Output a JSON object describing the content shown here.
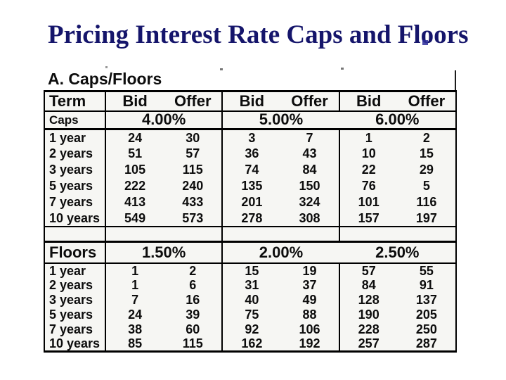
{
  "title": "Pricing Interest Rate Caps and Floors",
  "colors": {
    "title_text": "#15156b",
    "table_text": "#0d0d0d",
    "table_border": "#000000",
    "table_background": "#f6f6f3",
    "page_background": "#ffffff"
  },
  "table": {
    "section_label": "A. Caps/Floors",
    "header": {
      "term": "Term",
      "bid": "Bid",
      "offer": "Offer"
    },
    "caps": {
      "label": "Caps",
      "strikes": [
        "4.00%",
        "5.00%",
        "6.00%"
      ],
      "rows": [
        {
          "term": "1 year",
          "values": [
            "24",
            "30",
            "3",
            "7",
            "1",
            "2"
          ]
        },
        {
          "term": "2 years",
          "values": [
            "51",
            "57",
            "36",
            "43",
            "10",
            "15"
          ]
        },
        {
          "term": "3 years",
          "values": [
            "105",
            "115",
            "74",
            "84",
            "22",
            "29"
          ]
        },
        {
          "term": "5 years",
          "values": [
            "222",
            "240",
            "135",
            "150",
            "76",
            "5"
          ]
        },
        {
          "term": "7 years",
          "values": [
            "413",
            "433",
            "201",
            "324",
            "101",
            "116"
          ]
        },
        {
          "term": "10 years",
          "values": [
            "549",
            "573",
            "278",
            "308",
            "157",
            "197"
          ]
        }
      ]
    },
    "floors": {
      "label": "Floors",
      "strikes": [
        "1.50%",
        "2.00%",
        "2.50%"
      ],
      "rows": [
        {
          "term": "1 year",
          "values": [
            "1",
            "2",
            "15",
            "19",
            "57",
            "55"
          ]
        },
        {
          "term": "2 years",
          "values": [
            "1",
            "6",
            "31",
            "37",
            "84",
            "91"
          ]
        },
        {
          "term": "3 years",
          "values": [
            "7",
            "16",
            "40",
            "49",
            "128",
            "137"
          ]
        },
        {
          "term": "5 years",
          "values": [
            "24",
            "39",
            "75",
            "88",
            "190",
            "205"
          ]
        },
        {
          "term": "7 years",
          "values": [
            "38",
            "60",
            "92",
            "106",
            "228",
            "250"
          ]
        },
        {
          "term": "10 years",
          "values": [
            "85",
            "115",
            "162",
            "192",
            "257",
            "287"
          ]
        }
      ]
    }
  }
}
